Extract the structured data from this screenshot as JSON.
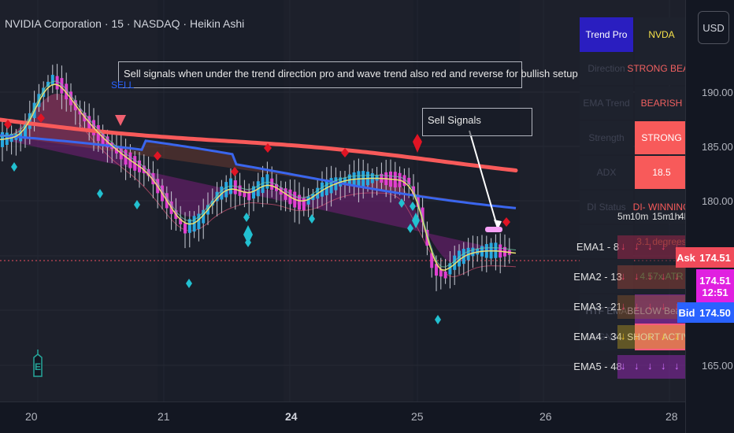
{
  "header": {
    "title": "NVIDIA Corporation · 15 · NASDAQ · Heikin Ashi"
  },
  "annotations": {
    "note_main": "Sell signals when under the trend direction pro and wave trend also red and reverse for bullish setup",
    "note_sell": "Sell Signals",
    "sell_tag": "SELL"
  },
  "price_scale": {
    "currency_button": "USD",
    "ticks": [
      "190.00",
      "185.00",
      "180.00",
      "165.00"
    ],
    "ask_label": "Ask",
    "ask_value": "174.51",
    "last_value": "174.51",
    "countdown": "12:51",
    "bid_label": "Bid",
    "bid_value": "174.50"
  },
  "time_axis": {
    "ticks": [
      "20",
      "21",
      "24",
      "25",
      "26",
      "28"
    ]
  },
  "dashboard": {
    "header_left": "Trend Pro",
    "header_right": "NVDA",
    "rows": [
      {
        "label": "Direction",
        "value": "STRONG BEAR"
      },
      {
        "label": "EMA Trend",
        "value": "BEARISH"
      },
      {
        "label": "Strength",
        "value": "STRONG"
      },
      {
        "label": "ADX",
        "value": "18.5"
      },
      {
        "label": "DI Status",
        "value": "DI- WINNING"
      },
      {
        "label": "",
        "value": "3.1 degrees"
      },
      {
        "label": "",
        "value": "4.57x ATR"
      },
      {
        "label": "HTF EMA",
        "value": "BELOW Bearish"
      },
      {
        "label": "SIGNAL",
        "value": "SHORT ACTIVE"
      }
    ]
  },
  "ema_table": {
    "timeframes": [
      "5m",
      "10m",
      "15m",
      "1h",
      "4h"
    ],
    "rows": [
      {
        "label": "EMA1 - 8",
        "arrows": [
          "↓",
          "↓",
          "↓",
          "↓",
          "↓"
        ]
      },
      {
        "label": "EMA2 - 13",
        "arrows": [
          "↓",
          "↓",
          "↓",
          "↓",
          "↓"
        ]
      },
      {
        "label": "EMA3 - 21",
        "arrows": [
          "↓",
          "↓",
          "↓",
          "↓",
          "↓"
        ]
      },
      {
        "label": "EMA4 - 34",
        "arrows": [
          "↓",
          "↓",
          "↓",
          "↓",
          "↓"
        ]
      },
      {
        "label": "EMA5 - 48",
        "arrows": [
          "↓",
          "↓",
          "↓",
          "↓",
          "↓"
        ]
      }
    ]
  },
  "event_marker": "E",
  "colors": {
    "bull_candle": "#29a8e0",
    "bear_candle": "#e040d0",
    "ema_slow": "#f85a5a",
    "ema_mid": "#3a66ee",
    "sell_signal": "#e01424",
    "buy_signal": "#22c0d0"
  }
}
